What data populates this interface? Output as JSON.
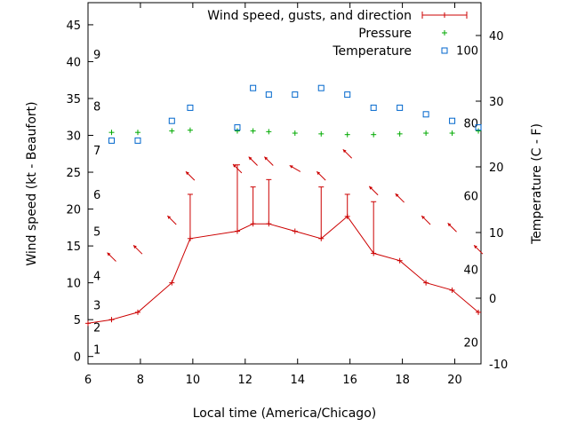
{
  "chart_data": {
    "type": "line",
    "xlabel": "Local time (America/Chicago)",
    "ylabel": "Wind speed (kt - Beaufort)",
    "y2label": "Temperature (C - F)",
    "xlim": [
      6,
      21
    ],
    "ylim": [
      -1,
      48
    ],
    "y2lim": [
      -10,
      45
    ],
    "x_ticks": [
      6,
      8,
      10,
      12,
      14,
      16,
      18,
      20
    ],
    "y_ticks": [
      0,
      5,
      10,
      15,
      20,
      25,
      30,
      35,
      40,
      45
    ],
    "y2_ticks": [
      -10,
      0,
      10,
      20,
      30,
      40
    ],
    "beaufort_labels": [
      {
        "text": "1",
        "y": 1.0
      },
      {
        "text": "2",
        "y": 4.0
      },
      {
        "text": "3",
        "y": 7.0
      },
      {
        "text": "4",
        "y": 11.0
      },
      {
        "text": "5",
        "y": 17.0
      },
      {
        "text": "6",
        "y": 22.0
      },
      {
        "text": "7",
        "y": 28.0
      },
      {
        "text": "8",
        "y": 34.0
      },
      {
        "text": "9",
        "y": 41.0
      }
    ],
    "fahrenheit_labels": [
      {
        "text": "20",
        "y2": -6.7
      },
      {
        "text": "40",
        "y2": 4.4
      },
      {
        "text": "60",
        "y2": 15.6
      },
      {
        "text": "80",
        "y2": 26.7
      },
      {
        "text": "100",
        "y2": 37.8
      }
    ],
    "series": [
      {
        "name": "Wind speed, gusts, and direction",
        "color": "#cc0000",
        "x": [
          6.0,
          6.9,
          7.9,
          9.2,
          9.9,
          11.7,
          12.3,
          12.9,
          13.9,
          14.9,
          15.9,
          16.9,
          17.9,
          18.9,
          19.9,
          20.9
        ],
        "values": [
          4.5,
          5.0,
          6.0,
          10.0,
          16.0,
          17.0,
          18.0,
          18.0,
          17.0,
          16.0,
          19.0,
          14.0,
          13.0,
          10.0,
          9.0,
          6.0
        ],
        "gusts": [
          null,
          null,
          null,
          null,
          22.0,
          26.0,
          23.0,
          24.0,
          null,
          23.0,
          22.0,
          21.0,
          null,
          null,
          null,
          null
        ],
        "direction_deg": [
          null,
          315,
          315,
          315,
          315,
          315,
          315,
          315,
          300,
          315,
          315,
          315,
          315,
          315,
          315,
          315
        ]
      },
      {
        "name": "Pressure",
        "color": "#00aa00",
        "x": [
          6.9,
          7.9,
          9.2,
          9.9,
          11.7,
          12.3,
          12.9,
          13.9,
          14.9,
          15.9,
          16.9,
          17.9,
          18.9,
          19.9,
          20.9
        ],
        "values": [
          30.4,
          30.4,
          30.6,
          30.7,
          30.6,
          30.6,
          30.5,
          30.3,
          30.2,
          30.1,
          30.1,
          30.2,
          30.3,
          30.3,
          30.6
        ]
      },
      {
        "name": "Temperature",
        "axis": "y2",
        "color": "#0066cc",
        "x": [
          6.9,
          7.9,
          9.2,
          9.9,
          11.7,
          12.3,
          12.9,
          13.9,
          14.9,
          15.9,
          16.9,
          17.9,
          18.9,
          19.9,
          20.9
        ],
        "values": [
          24.0,
          24.0,
          27.0,
          29.0,
          26.0,
          32.0,
          31.0,
          31.0,
          32.0,
          31.0,
          29.0,
          29.0,
          28.0,
          27.0,
          26.0
        ]
      }
    ],
    "legend_position": "top-right",
    "grid": false
  }
}
